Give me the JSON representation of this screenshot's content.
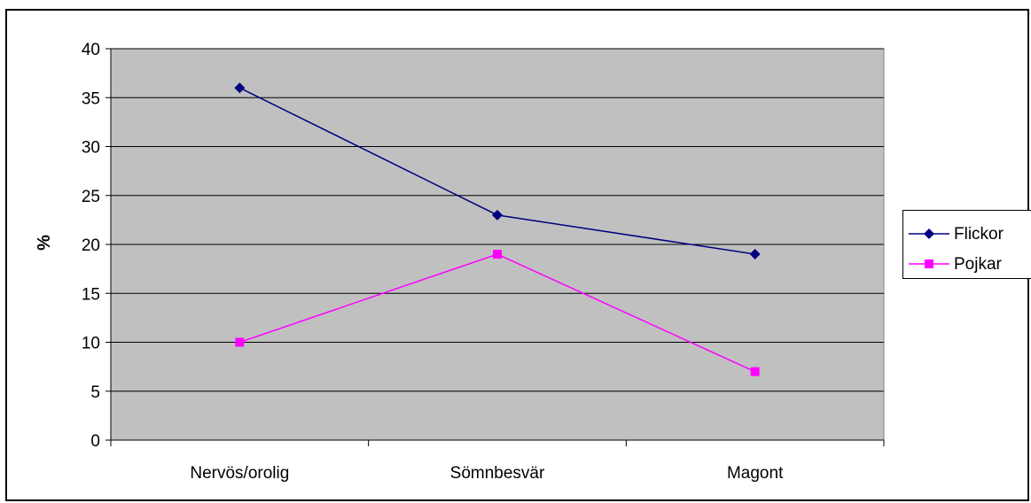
{
  "chart_data": {
    "type": "line",
    "categories": [
      "Nervös/orolig",
      "Sömnbesvär",
      "Magont"
    ],
    "series": [
      {
        "name": "Flickor",
        "values": [
          36,
          23,
          19
        ],
        "color": "#000080",
        "marker": "diamond"
      },
      {
        "name": "Pojkar",
        "values": [
          10,
          19,
          7
        ],
        "color": "#FF00FF",
        "marker": "square"
      }
    ],
    "title": "",
    "xlabel": "",
    "ylabel": "%",
    "ylim": [
      0,
      40
    ],
    "yticks": [
      0,
      5,
      10,
      15,
      20,
      25,
      30,
      35,
      40
    ],
    "grid": true,
    "plot_background": "#C0C0C0",
    "legend_position": "right"
  }
}
